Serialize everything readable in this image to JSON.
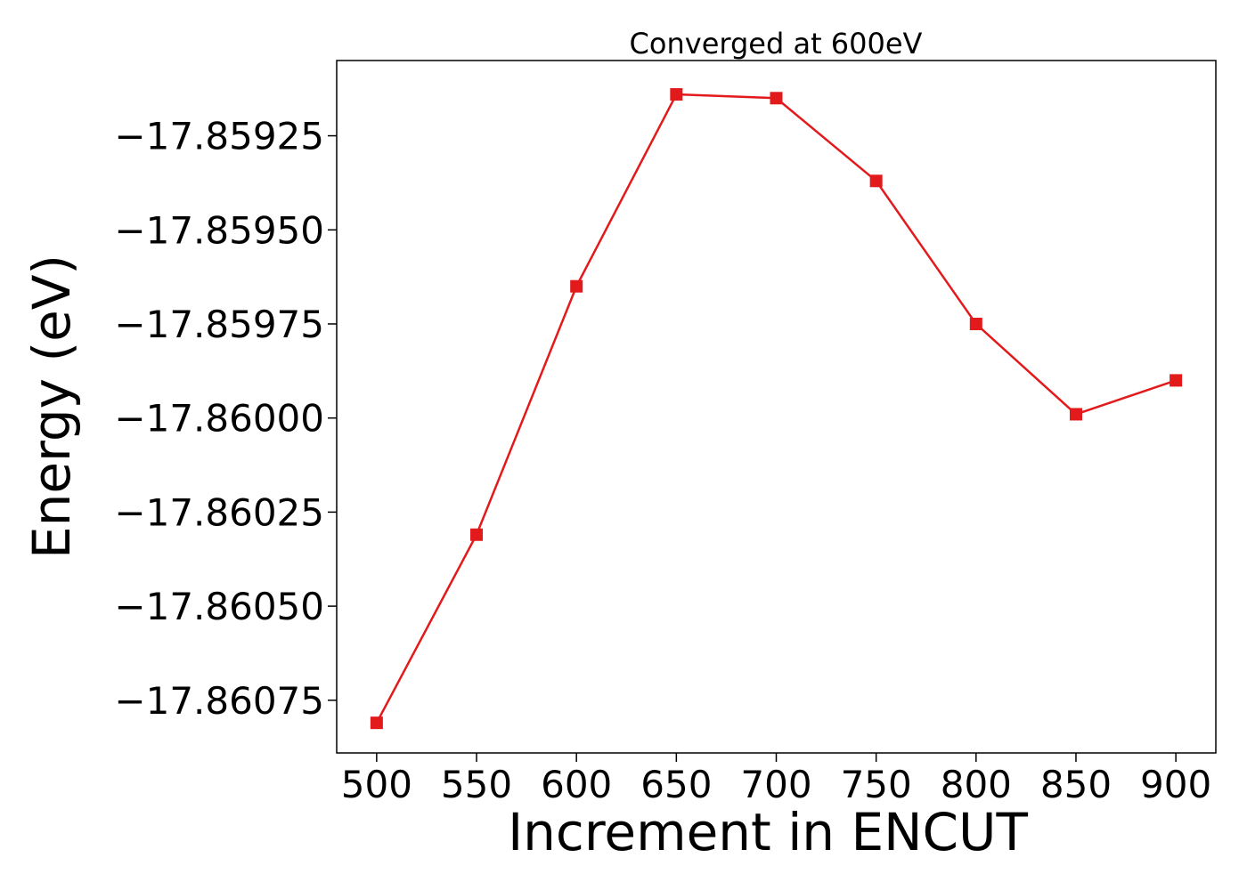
{
  "chart_data": {
    "type": "line",
    "title": "Converged at 600eV",
    "xlabel": "Increment in ENCUT",
    "ylabel": "Energy (eV)",
    "x": [
      500,
      550,
      600,
      650,
      700,
      750,
      800,
      850,
      900
    ],
    "series": [
      {
        "values": [
          -17.86081,
          -17.86031,
          -17.85965,
          -17.85914,
          -17.85915,
          -17.85937,
          -17.85975,
          -17.85999,
          -17.8599
        ],
        "color": "#e31a1c",
        "marker": "square"
      }
    ],
    "xticks": [
      500,
      550,
      600,
      650,
      700,
      750,
      800,
      850,
      900
    ],
    "xtick_labels": [
      "500",
      "550",
      "600",
      "650",
      "700",
      "750",
      "800",
      "850",
      "900"
    ],
    "yticks": [
      -17.85925,
      -17.8595,
      -17.85975,
      -17.86,
      -17.86025,
      -17.8605,
      -17.86075
    ],
    "ytick_labels": [
      "−17.85925",
      "−17.85950",
      "−17.85975",
      "−17.86000",
      "−17.86025",
      "−17.86050",
      "−17.86075"
    ],
    "xlim": [
      480,
      920
    ],
    "ylim": [
      -17.86089,
      -17.85905
    ],
    "grid": false,
    "legend": "none"
  }
}
